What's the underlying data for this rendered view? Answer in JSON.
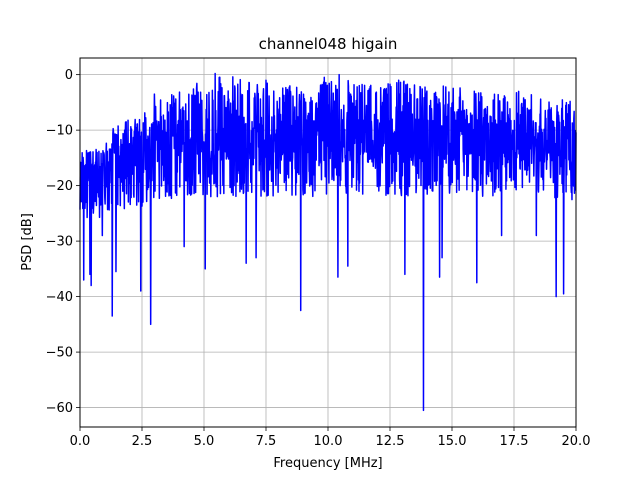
{
  "chart_data": {
    "type": "line",
    "title": "channel048 higain",
    "xlabel": "Frequency [MHz]",
    "ylabel": "PSD [dB]",
    "xlim": [
      0,
      20
    ],
    "ylim": [
      -63.5,
      3
    ],
    "x_ticks": [
      0,
      2.5,
      5,
      7.5,
      10,
      12.5,
      15,
      17.5,
      20
    ],
    "x_tick_labels": [
      "0.0",
      "2.5",
      "5.0",
      "7.5",
      "10.0",
      "12.5",
      "15.0",
      "17.5",
      "20.0"
    ],
    "y_ticks": [
      0,
      -10,
      -20,
      -30,
      -40,
      -50,
      -60
    ],
    "y_tick_labels": [
      "0",
      "−10",
      "−20",
      "−30",
      "−40",
      "−50",
      "−60"
    ],
    "grid": true,
    "series": [
      {
        "color": "#0000ff",
        "envelope_x": [
          0,
          0.5,
          1.0,
          1.5,
          2.0,
          2.5,
          3.0,
          4.0,
          5.0,
          6.0,
          7.0,
          8.0,
          9.0,
          10.0,
          11.0,
          12.0,
          13.0,
          14.0,
          15.0,
          16.0,
          17.0,
          18.0,
          19.0,
          20.0
        ],
        "envelope_top": [
          -12,
          -13,
          -11,
          -9,
          -8,
          -7,
          -5,
          -3,
          -1,
          0,
          -1,
          -2,
          -2,
          -1,
          -1,
          -2,
          -1,
          -2,
          -2,
          -3,
          -2,
          -3,
          -5,
          -4
        ],
        "envelope_base": [
          -18,
          -18,
          -17,
          -16,
          -15,
          -14,
          -13,
          -12,
          -12,
          -12,
          -12,
          -12,
          -12,
          -12,
          -12,
          -12,
          -12,
          -12,
          -12,
          -12,
          -12,
          -12,
          -13,
          -13
        ],
        "envelope_bottom": [
          -27,
          -27,
          -26,
          -25,
          -24,
          -24,
          -23,
          -22,
          -22,
          -22,
          -22,
          -22,
          -22,
          -22,
          -22,
          -22,
          -22,
          -22,
          -22,
          -22,
          -22,
          -22,
          -23,
          -23
        ],
        "dips": [
          {
            "x": 0.15,
            "y": -37
          },
          {
            "x": 0.4,
            "y": -36
          },
          {
            "x": 0.45,
            "y": -38
          },
          {
            "x": 0.9,
            "y": -29
          },
          {
            "x": 1.3,
            "y": -43.5
          },
          {
            "x": 1.45,
            "y": -35.5
          },
          {
            "x": 1.8,
            "y": -31
          },
          {
            "x": 2.45,
            "y": -39
          },
          {
            "x": 2.85,
            "y": -45
          },
          {
            "x": 3.0,
            "y": -31
          },
          {
            "x": 4.2,
            "y": -31
          },
          {
            "x": 5.05,
            "y": -35
          },
          {
            "x": 6.7,
            "y": -34
          },
          {
            "x": 7.1,
            "y": -33
          },
          {
            "x": 8.9,
            "y": -42.5
          },
          {
            "x": 10.4,
            "y": -36.5
          },
          {
            "x": 10.8,
            "y": -34.5
          },
          {
            "x": 13.1,
            "y": -36
          },
          {
            "x": 13.85,
            "y": -60.5
          },
          {
            "x": 14.5,
            "y": -36.5
          },
          {
            "x": 14.6,
            "y": -33
          },
          {
            "x": 16.0,
            "y": -37.5
          },
          {
            "x": 17.0,
            "y": -29
          },
          {
            "x": 18.4,
            "y": -29
          },
          {
            "x": 19.2,
            "y": -40
          },
          {
            "x": 19.5,
            "y": -39.5
          }
        ],
        "peaks": [
          {
            "x": 5.45,
            "y": 0.2
          },
          {
            "x": 10.45,
            "y": 0
          },
          {
            "x": 9.85,
            "y": -0.5
          },
          {
            "x": 12.85,
            "y": -1
          },
          {
            "x": 1.8,
            "y": -10
          },
          {
            "x": 3.0,
            "y": -3.5
          },
          {
            "x": 7.5,
            "y": -1
          },
          {
            "x": 15.9,
            "y": -3
          }
        ]
      }
    ]
  }
}
